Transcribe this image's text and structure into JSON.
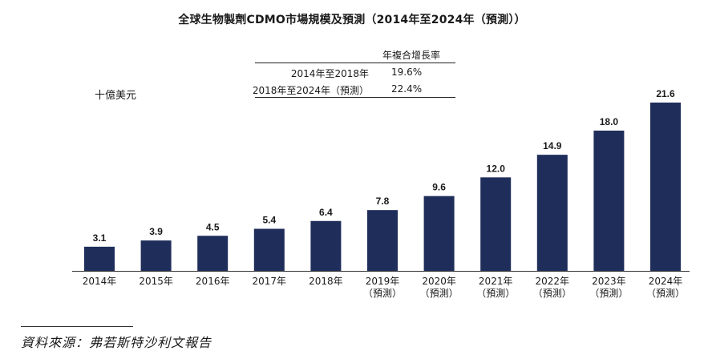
{
  "title": "全球生物製劑CDMO市場規模及預測（2014年至2024年（預測））",
  "unit": "十億美元",
  "cagr_table": {
    "header": "年複合增長率",
    "rows": [
      {
        "period": "2014年至2018年",
        "value": "19.6%"
      },
      {
        "period": "2018年至2024年（預測）",
        "value": "22.4%"
      }
    ]
  },
  "source": "資料來源：弗若斯特沙利文報告",
  "colors": {
    "bar": "#1f2d5a",
    "axis": "#333333"
  },
  "chart_data": {
    "type": "bar",
    "title": "全球生物製劑CDMO市場規模及預測（2014年至2024年（預測））",
    "ylabel": "十億美元",
    "categories": [
      [
        "2014年"
      ],
      [
        "2015年"
      ],
      [
        "2016年"
      ],
      [
        "2017年"
      ],
      [
        "2018年"
      ],
      [
        "2019年",
        "（預測）"
      ],
      [
        "2020年",
        "（預測）"
      ],
      [
        "2021年",
        "（預測）"
      ],
      [
        "2022年",
        "（預測）"
      ],
      [
        "2023年",
        "（預測）"
      ],
      [
        "2024年",
        "（預測）"
      ]
    ],
    "values": [
      3.1,
      3.9,
      4.5,
      5.4,
      6.4,
      7.8,
      9.6,
      12.0,
      14.9,
      18.0,
      21.6
    ],
    "labels": [
      "3.1",
      "3.9",
      "4.5",
      "5.4",
      "6.4",
      "7.8",
      "9.6",
      "12.0",
      "14.9",
      "18.0",
      "21.6"
    ],
    "ylim": [
      0,
      21.6
    ]
  }
}
